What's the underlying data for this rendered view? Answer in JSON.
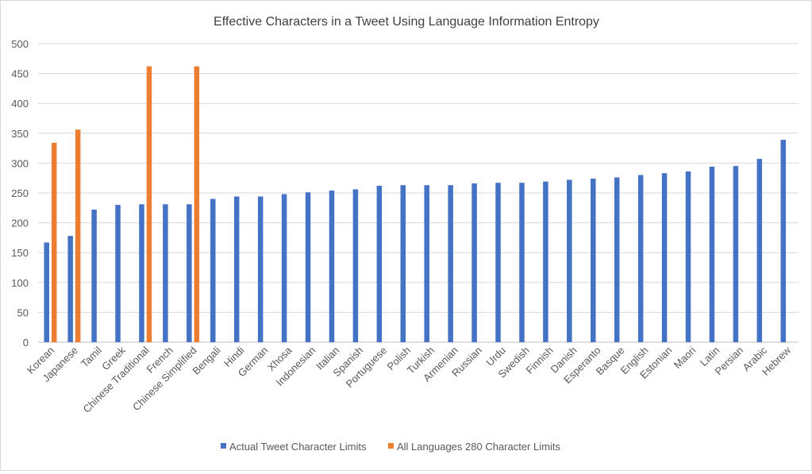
{
  "chart_data": {
    "type": "bar",
    "title": "Effective Characters in a Tweet Using Language Information Entropy",
    "xlabel": "",
    "ylabel": "",
    "ylim": [
      0,
      500
    ],
    "yticks": [
      0,
      50,
      100,
      150,
      200,
      250,
      300,
      350,
      400,
      450,
      500
    ],
    "grid": true,
    "legend_position": "bottom",
    "categories": [
      "Korean",
      "Japanese",
      "Tamil",
      "Greek",
      "Chinese Traditional",
      "French",
      "Chinese Simplified",
      "Bengali",
      "Hindi",
      "German",
      "Xhosa",
      "Indonesian",
      "Italian",
      "Spanish",
      "Portuguese",
      "Polish",
      "Turkish",
      "Armenian",
      "Russian",
      "Urdu",
      "Swedish",
      "Finnish",
      "Danish",
      "Esperanto",
      "Basque",
      "English",
      "Estonian",
      "Maori",
      "Latin",
      "Persian",
      "Arabic",
      "Hebrew"
    ],
    "series": [
      {
        "name": "Actual Tweet Character Limits",
        "color": "#4472c4",
        "values": [
          167,
          178,
          222,
          230,
          231,
          231,
          231,
          240,
          244,
          244,
          248,
          251,
          254,
          256,
          262,
          263,
          263,
          263,
          266,
          267,
          267,
          269,
          272,
          274,
          276,
          280,
          283,
          286,
          294,
          295,
          307,
          339
        ]
      },
      {
        "name": "All Languages 280 Character Limits",
        "color": "#ed7d31",
        "values": [
          334,
          356,
          null,
          null,
          462,
          null,
          462,
          null,
          null,
          null,
          null,
          null,
          null,
          null,
          null,
          null,
          null,
          null,
          null,
          null,
          null,
          null,
          null,
          null,
          null,
          null,
          null,
          null,
          null,
          null,
          null,
          null
        ]
      }
    ]
  }
}
